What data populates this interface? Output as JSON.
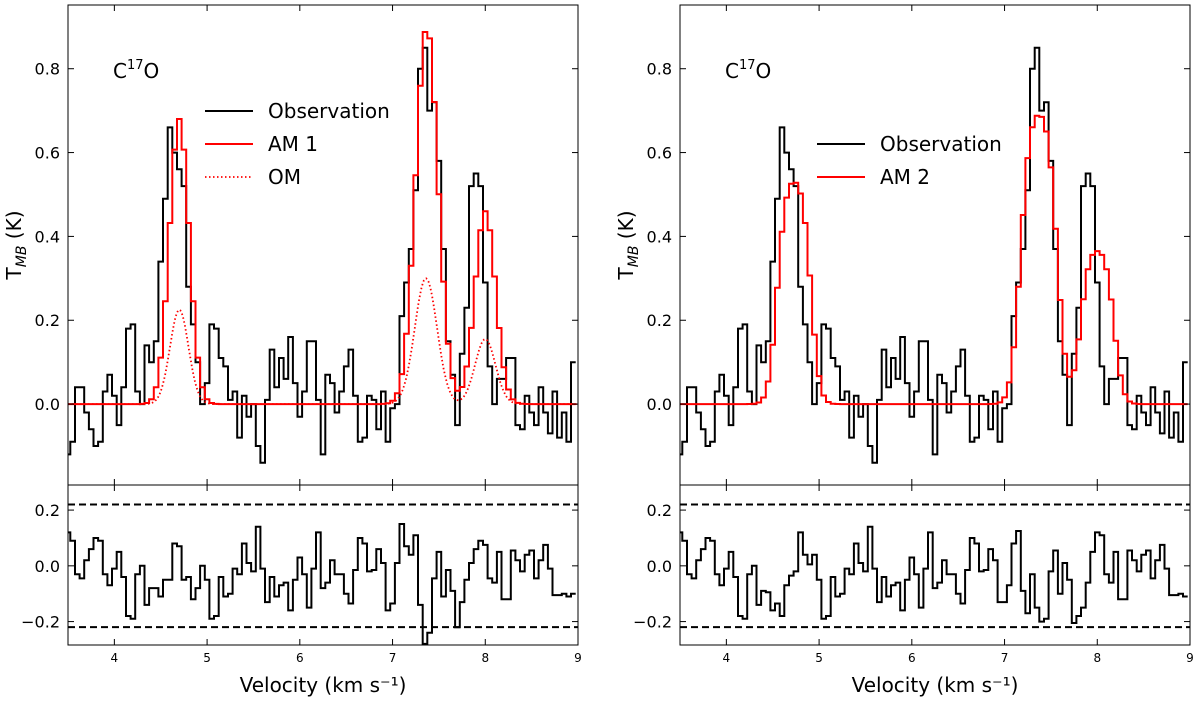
{
  "chart_data": [
    {
      "type": "line",
      "panel": "left",
      "title": "C17O",
      "title_main": "C",
      "title_sup": "17",
      "title_end": "O",
      "xlabel": "Velocity (km s⁻¹)",
      "ylabel": "T",
      "ylabel_sub": "MB",
      "ylabel_end": " (K)",
      "xlim": [
        3.5,
        9.0
      ],
      "ylim_main": [
        -0.193,
        0.952
      ],
      "ylim_residual": [
        -0.284,
        0.29
      ],
      "xticks": [
        "4",
        "5",
        "6",
        "7",
        "8",
        "9"
      ],
      "yticks_main": [
        "0.0",
        "0.2",
        "0.4",
        "0.6",
        "0.8"
      ],
      "yticks_residual": [
        "−0.2",
        "0.0",
        "0.2"
      ],
      "residual_threshold": 0.22,
      "legend_position": "upper-center",
      "channel_start": 3.5,
      "channel_width": 0.05,
      "series": [
        {
          "name": "Observation",
          "color": "#000000",
          "style": "solid-step",
          "values": "observation"
        },
        {
          "name": "AM 1",
          "color": "#ff0000",
          "style": "solid-step",
          "profile": "gaussian",
          "components": [
            {
              "center": 4.7,
              "peak": 0.68,
              "sigma": 0.105
            },
            {
              "center": 7.37,
              "peak": 0.9,
              "sigma": 0.12
            },
            {
              "center": 8.0,
              "peak": 0.46,
              "sigma": 0.11
            }
          ]
        },
        {
          "name": "OM",
          "color": "#ff0000",
          "style": "dotted",
          "profile": "gaussian",
          "components": [
            {
              "center": 4.7,
              "peak": 0.225,
              "sigma": 0.1
            },
            {
              "center": 7.36,
              "peak": 0.3,
              "sigma": 0.12
            },
            {
              "center": 8.0,
              "peak": 0.155,
              "sigma": 0.11
            }
          ]
        }
      ],
      "residual": [
        0.12,
        0.09,
        -0.03,
        -0.045,
        0.02,
        0.06,
        0.1,
        0.09,
        -0.03,
        -0.07,
        -0.01,
        0.05,
        -0.04,
        -0.18,
        -0.19,
        -0.03,
        0,
        -0.14,
        -0.08,
        -0.08,
        -0.11,
        -0.05,
        -0.05,
        0.08,
        0.07,
        -0.05,
        -0.04,
        -0.12,
        -0.08,
        0,
        -0.05,
        -0.19,
        -0.18,
        -0.04,
        -0.11,
        -0.1,
        -0.01,
        -0.03,
        0.08,
        0.01,
        -0.02,
        0.14,
        -0.01,
        -0.13,
        -0.04,
        -0.11,
        -0.07,
        -0.06,
        -0.16,
        -0.05,
        0.03,
        -0.03,
        -0.15,
        -0.01,
        0.12,
        -0.08,
        -0.06,
        0.02,
        -0.03,
        -0.03,
        -0.1,
        -0.135,
        -0.015,
        0.1,
        0.08,
        -0.02,
        -0.015,
        0.06,
        0.01,
        -0.16,
        -0.135,
        0.01,
        0.15,
        0.07,
        0.04,
        0.11,
        -0.14,
        -0.28,
        -0.24,
        -0.045,
        0.05,
        -0.11,
        -0.015,
        -0.09,
        -0.22,
        -0.13,
        -0.05,
        0.01,
        0.06,
        0.09,
        0.075,
        -0.045,
        -0.06,
        0.05,
        -0.12,
        -0.12,
        0.055,
        0.02,
        -0.02,
        0.04,
        0.055,
        -0.045,
        0.02,
        0.075,
        -0.01,
        -0.105,
        -0.105,
        -0.1,
        -0.11,
        -0.1
      ]
    },
    {
      "type": "line",
      "panel": "right",
      "title": "C17O",
      "title_main": "C",
      "title_sup": "17",
      "title_end": "O",
      "xlabel": "Velocity (km s⁻¹)",
      "ylabel": "T",
      "ylabel_sub": "MB",
      "ylabel_end": " (K)",
      "xlim": [
        3.5,
        9.0
      ],
      "ylim_main": [
        -0.193,
        0.952
      ],
      "ylim_residual": [
        -0.284,
        0.29
      ],
      "xticks": [
        "4",
        "5",
        "6",
        "7",
        "8",
        "9"
      ],
      "yticks_main": [
        "0.0",
        "0.2",
        "0.4",
        "0.6",
        "0.8"
      ],
      "yticks_residual": [
        "−0.2",
        "0.0",
        "0.2"
      ],
      "residual_threshold": 0.22,
      "legend_position": "upper-center",
      "channel_start": 3.5,
      "channel_width": 0.05,
      "series": [
        {
          "name": "Observation",
          "color": "#000000",
          "style": "solid-step",
          "values": "observation"
        },
        {
          "name": "AM 2",
          "color": "#ff0000",
          "style": "solid-step",
          "profile": "saturated",
          "tau": 2.5,
          "components": [
            {
              "center": 4.73,
              "peak": 0.53,
              "sigma": 0.11
            },
            {
              "center": 7.37,
              "peak": 0.69,
              "sigma": 0.12
            },
            {
              "center": 8.0,
              "peak": 0.365,
              "sigma": 0.11
            }
          ]
        }
      ],
      "residual": [
        0.12,
        0.09,
        -0.03,
        -0.045,
        0.02,
        0.06,
        0.1,
        0.09,
        -0.03,
        -0.07,
        -0.01,
        0.05,
        -0.04,
        -0.18,
        -0.19,
        -0.03,
        0,
        -0.14,
        -0.09,
        -0.095,
        -0.16,
        -0.135,
        -0.18,
        -0.07,
        -0.035,
        -0.02,
        0.12,
        0.04,
        0.005,
        0.04,
        -0.05,
        -0.19,
        -0.18,
        -0.04,
        -0.11,
        -0.1,
        -0.01,
        -0.03,
        0.08,
        0.01,
        -0.02,
        0.14,
        -0.01,
        -0.13,
        -0.04,
        -0.11,
        -0.07,
        -0.06,
        -0.16,
        -0.05,
        0.03,
        -0.03,
        -0.15,
        -0.01,
        0.12,
        -0.08,
        -0.06,
        0.02,
        -0.03,
        -0.03,
        -0.1,
        -0.135,
        -0.015,
        0.1,
        0.08,
        -0.02,
        -0.015,
        0.06,
        0.02,
        -0.13,
        -0.13,
        -0.07,
        0.08,
        0.125,
        -0.09,
        -0.17,
        -0.03,
        -0.15,
        -0.2,
        -0.19,
        -0.02,
        0.055,
        -0.1,
        0.01,
        -0.05,
        -0.205,
        -0.18,
        -0.15,
        -0.06,
        0.05,
        0.12,
        0.11,
        -0.03,
        -0.06,
        0.05,
        -0.12,
        -0.12,
        0.055,
        0.02,
        -0.02,
        0.04,
        0.055,
        -0.045,
        0.02,
        0.075,
        -0.01,
        -0.105,
        -0.105,
        -0.1,
        -0.11
      ]
    }
  ],
  "observation": [
    -0.12,
    -0.09,
    0.04,
    0.04,
    -0.02,
    -0.06,
    -0.1,
    -0.09,
    0.03,
    0.07,
    0.02,
    -0.05,
    0.04,
    0.18,
    0.19,
    0.03,
    0.0,
    0.14,
    0.1,
    0.15,
    0.34,
    0.49,
    0.66,
    0.6,
    0.56,
    0.52,
    0.28,
    0.19,
    0.1,
    0.0,
    0.05,
    0.19,
    0.18,
    0.11,
    0.09,
    0.01,
    0.03,
    -0.08,
    0.02,
    -0.03,
    0.0,
    -0.1,
    -0.14,
    0.01,
    0.13,
    0.04,
    0.11,
    0.06,
    0.16,
    0.05,
    -0.03,
    0.03,
    0.15,
    0.15,
    0.01,
    -0.12,
    0.07,
    0.05,
    -0.02,
    0.03,
    0.09,
    0.13,
    0.02,
    -0.09,
    -0.08,
    0.02,
    0.01,
    -0.06,
    0.03,
    -0.09,
    -0.01,
    0.0,
    0.21,
    0.29,
    0.37,
    0.51,
    0.8,
    0.85,
    0.7,
    0.72,
    0.58,
    0.37,
    0.15,
    0.07,
    -0.05,
    0.12,
    0.23,
    0.52,
    0.55,
    0.52,
    0.29,
    0.09,
    0.0,
    0.06,
    0.06,
    0.11,
    0.11,
    -0.05,
    -0.06,
    0.02,
    -0.02,
    -0.05,
    0.04,
    -0.02,
    -0.07,
    0.03,
    -0.08,
    -0.02,
    -0.09,
    0.1
  ]
}
